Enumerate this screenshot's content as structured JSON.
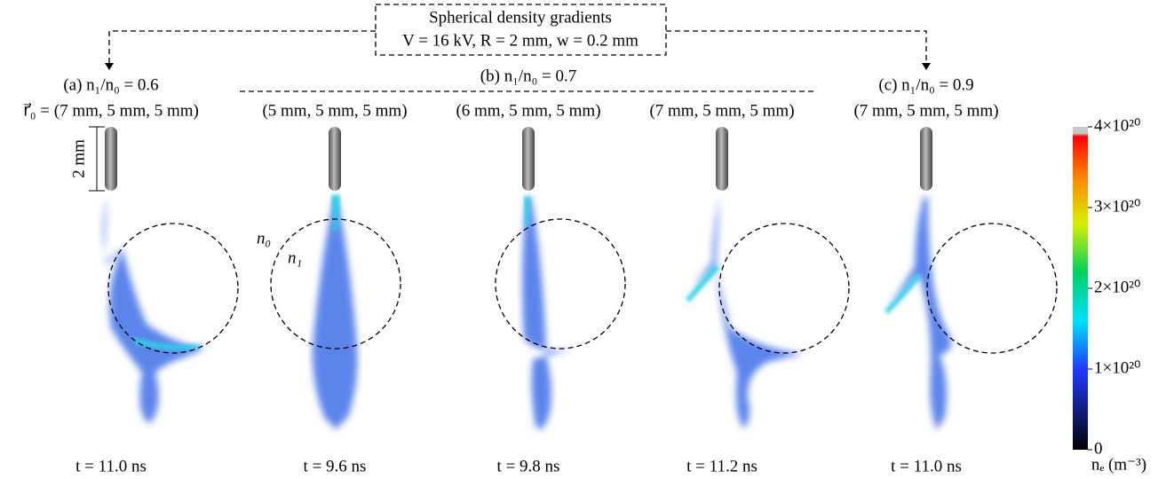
{
  "header": {
    "title": "Spherical density gradients",
    "params": "V = 16 kV, R = 2 mm, w = 0.2 mm"
  },
  "groups": [
    {
      "label": "(a) n₁/n₀ = 0.6"
    },
    {
      "label": "(b) n₁/n₀ = 0.7"
    },
    {
      "label": "(c) n₁/n₀ = 0.9"
    }
  ],
  "panels": [
    {
      "position": "r⃗₀ = (7 mm, 5 mm, 5 mm)",
      "time": "t = 11.0 ns"
    },
    {
      "position": "(5 mm, 5 mm, 5 mm)",
      "time": "t = 9.6 ns"
    },
    {
      "position": "(6 mm, 5 mm, 5 mm)",
      "time": "t = 9.8 ns"
    },
    {
      "position": "(7 mm, 5 mm, 5 mm)",
      "time": "t = 11.2 ns"
    },
    {
      "position": "(7 mm, 5 mm, 5 mm)",
      "time": "t = 11.0 ns"
    }
  ],
  "annotations": {
    "scale": "2 mm",
    "outer": "n₀",
    "inner": "n₁"
  },
  "colorbar": {
    "label": "nₑ (m⁻³)",
    "range": [
      0,
      4e+20
    ],
    "ticks": [
      0,
      {
        "value": 1e+20,
        "label": "1×10²⁰"
      },
      {
        "value": 2e+20,
        "label": "2×10²⁰"
      },
      {
        "value": 3e+20,
        "label": "3×10²⁰"
      },
      {
        "value": 4e+20,
        "label": "4×10²⁰"
      }
    ]
  }
}
